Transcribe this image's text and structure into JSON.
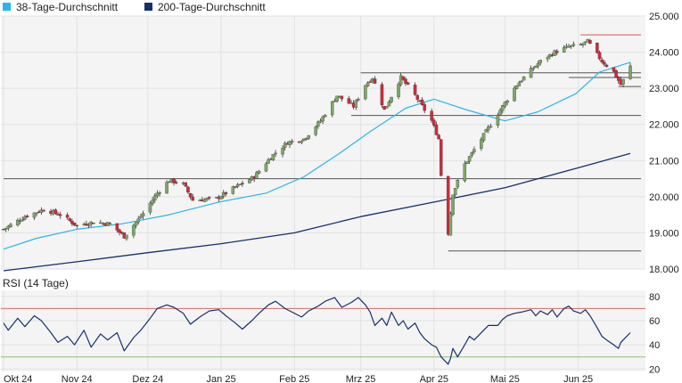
{
  "legend": [
    {
      "name": "38-Tage-Durchschnitt",
      "color": "#29b6e8"
    },
    {
      "name": "200-Tage-Durchschnitt",
      "color": "#16306e"
    }
  ],
  "rsi_label": "RSI (14 Tage)",
  "colors": {
    "up": "#7ea864",
    "down": "#d3283a",
    "wick": "#333333",
    "sma38": "#29b6e8",
    "sma200": "#16306e",
    "rsi": "#16306e",
    "level_line": "#555555",
    "resistance": "#d9534f",
    "rsi_high": "#e06666",
    "rsi_low": "#8fbf6f",
    "grid": "#e2e2e2",
    "panel_bg": "#f4f4f4"
  },
  "chart_data": [
    {
      "type": "candlestick",
      "title": "",
      "x_labels": [
        "Okt 24",
        "Nov 24",
        "Dez 24",
        "Jan 25",
        "Feb 25",
        "Mrz 25",
        "Apr 25",
        "Mai 25",
        "Jun 25"
      ],
      "x_label_dates": [
        "2024-10-01",
        "2024-11-01",
        "2024-12-01",
        "2025-01-01",
        "2025-02-01",
        "2025-03-01",
        "2025-04-01",
        "2025-05-01",
        "2025-06-01"
      ],
      "x_range": [
        "2024-10-01",
        "2025-06-23"
      ],
      "y_ticks": [
        "18.000",
        "19.000",
        "20.000",
        "21.000",
        "22.000",
        "23.000",
        "24.000",
        "25.000"
      ],
      "y_tick_values": [
        18000,
        19000,
        20000,
        21000,
        22000,
        23000,
        24000,
        25000
      ],
      "ylim": [
        18000,
        25000
      ],
      "close_anchors": [
        [
          "2024-10-01",
          19100
        ],
        [
          "2024-10-10",
          19450
        ],
        [
          "2024-10-18",
          19650
        ],
        [
          "2024-10-25",
          19500
        ],
        [
          "2024-11-01",
          19200
        ],
        [
          "2024-11-08",
          19300
        ],
        [
          "2024-11-15",
          19250
        ],
        [
          "2024-11-21",
          18900
        ],
        [
          "2024-11-28",
          19450
        ],
        [
          "2024-12-05",
          20100
        ],
        [
          "2024-12-10",
          20450
        ],
        [
          "2024-12-16",
          20350
        ],
        [
          "2024-12-20",
          19900
        ],
        [
          "2024-12-30",
          19950
        ],
        [
          "2025-01-08",
          20300
        ],
        [
          "2025-01-15",
          20550
        ],
        [
          "2025-01-22",
          21100
        ],
        [
          "2025-01-29",
          21500
        ],
        [
          "2025-02-05",
          21600
        ],
        [
          "2025-02-12",
          22100
        ],
        [
          "2025-02-19",
          22800
        ],
        [
          "2025-02-26",
          22500
        ],
        [
          "2025-03-03",
          23100
        ],
        [
          "2025-03-06",
          23300
        ],
        [
          "2025-03-11",
          22400
        ],
        [
          "2025-03-18",
          23300
        ],
        [
          "2025-03-24",
          22800
        ],
        [
          "2025-03-31",
          22100
        ],
        [
          "2025-04-03",
          21600
        ],
        [
          "2025-04-04",
          20600
        ],
        [
          "2025-04-07",
          19000
        ],
        [
          "2025-04-09",
          20100
        ],
        [
          "2025-04-14",
          20900
        ],
        [
          "2025-04-17",
          21200
        ],
        [
          "2025-04-24",
          21900
        ],
        [
          "2025-04-30",
          22500
        ],
        [
          "2025-05-06",
          23100
        ],
        [
          "2025-05-12",
          23500
        ],
        [
          "2025-05-16",
          23750
        ],
        [
          "2025-05-22",
          24000
        ],
        [
          "2025-05-28",
          24150
        ],
        [
          "2025-06-02",
          24200
        ],
        [
          "2025-06-05",
          24300
        ],
        [
          "2025-06-11",
          23750
        ],
        [
          "2025-06-16",
          23450
        ],
        [
          "2025-06-19",
          23100
        ],
        [
          "2025-06-23",
          23600
        ]
      ],
      "sma38_anchors": [
        [
          "2024-10-01",
          18550
        ],
        [
          "2024-10-15",
          18850
        ],
        [
          "2024-11-01",
          19100
        ],
        [
          "2024-11-20",
          19250
        ],
        [
          "2024-12-10",
          19500
        ],
        [
          "2024-12-31",
          19850
        ],
        [
          "2025-01-20",
          20100
        ],
        [
          "2025-02-05",
          20550
        ],
        [
          "2025-02-20",
          21200
        ],
        [
          "2025-03-05",
          21800
        ],
        [
          "2025-03-20",
          22450
        ],
        [
          "2025-04-01",
          22700
        ],
        [
          "2025-04-15",
          22400
        ],
        [
          "2025-05-01",
          22100
        ],
        [
          "2025-05-15",
          22350
        ],
        [
          "2025-05-31",
          22850
        ],
        [
          "2025-06-10",
          23450
        ],
        [
          "2025-06-23",
          23720
        ]
      ],
      "sma200_anchors": [
        [
          "2024-10-01",
          17950
        ],
        [
          "2024-11-01",
          18200
        ],
        [
          "2024-12-01",
          18450
        ],
        [
          "2025-01-01",
          18700
        ],
        [
          "2025-02-01",
          19000
        ],
        [
          "2025-03-01",
          19450
        ],
        [
          "2025-04-01",
          19850
        ],
        [
          "2025-05-01",
          20250
        ],
        [
          "2025-06-01",
          20800
        ],
        [
          "2025-06-23",
          21200
        ]
      ],
      "support_lines": [
        {
          "value": 23430,
          "from": "2025-03-01",
          "to": "2025-06-23"
        },
        {
          "value": 23300,
          "from": "2025-05-28",
          "to": "2025-06-23"
        },
        {
          "value": 22250,
          "from": "2025-02-25",
          "to": "2025-06-23"
        },
        {
          "value": 20500,
          "from": "2024-10-01",
          "to": "2025-06-23"
        },
        {
          "value": 18500,
          "from": "2025-04-07",
          "to": "2025-06-23"
        },
        {
          "value": 23050,
          "from": "2025-06-18",
          "to": "2025-06-23"
        }
      ],
      "resistance_line": {
        "value": 24480,
        "from": "2025-06-02",
        "to": "2025-06-23"
      },
      "grid": true,
      "legend_position": "top-left"
    },
    {
      "type": "line",
      "title": "RSI (14 Tage)",
      "y_ticks": [
        "20",
        "40",
        "60",
        "80"
      ],
      "y_tick_values": [
        20,
        40,
        60,
        80
      ],
      "ylim": [
        18,
        85
      ],
      "reference_lines": [
        70,
        30
      ],
      "anchors": [
        [
          "2024-10-01",
          58
        ],
        [
          "2024-10-03",
          52
        ],
        [
          "2024-10-07",
          62
        ],
        [
          "2024-10-10",
          55
        ],
        [
          "2024-10-14",
          64
        ],
        [
          "2024-10-17",
          60
        ],
        [
          "2024-10-21",
          50
        ],
        [
          "2024-10-24",
          42
        ],
        [
          "2024-10-28",
          47
        ],
        [
          "2024-10-31",
          40
        ],
        [
          "2024-11-04",
          52
        ],
        [
          "2024-11-07",
          38
        ],
        [
          "2024-11-11",
          49
        ],
        [
          "2024-11-14",
          44
        ],
        [
          "2024-11-18",
          50
        ],
        [
          "2024-11-21",
          35
        ],
        [
          "2024-11-25",
          46
        ],
        [
          "2024-11-28",
          52
        ],
        [
          "2024-12-02",
          62
        ],
        [
          "2024-12-05",
          70
        ],
        [
          "2024-12-09",
          73
        ],
        [
          "2024-12-12",
          71
        ],
        [
          "2024-12-16",
          66
        ],
        [
          "2024-12-19",
          57
        ],
        [
          "2024-12-23",
          63
        ],
        [
          "2024-12-27",
          68
        ],
        [
          "2024-12-31",
          69
        ],
        [
          "2025-01-03",
          64
        ],
        [
          "2025-01-07",
          58
        ],
        [
          "2025-01-10",
          53
        ],
        [
          "2025-01-14",
          60
        ],
        [
          "2025-01-17",
          66
        ],
        [
          "2025-01-21",
          73
        ],
        [
          "2025-01-24",
          76
        ],
        [
          "2025-01-28",
          70
        ],
        [
          "2025-01-31",
          67
        ],
        [
          "2025-02-04",
          63
        ],
        [
          "2025-02-07",
          68
        ],
        [
          "2025-02-11",
          72
        ],
        [
          "2025-02-14",
          76
        ],
        [
          "2025-02-18",
          79
        ],
        [
          "2025-02-21",
          71
        ],
        [
          "2025-02-25",
          75
        ],
        [
          "2025-02-28",
          79
        ],
        [
          "2025-03-03",
          73
        ],
        [
          "2025-03-05",
          67
        ],
        [
          "2025-03-07",
          56
        ],
        [
          "2025-03-10",
          62
        ],
        [
          "2025-03-12",
          56
        ],
        [
          "2025-03-14",
          67
        ],
        [
          "2025-03-17",
          56
        ],
        [
          "2025-03-19",
          60
        ],
        [
          "2025-03-21",
          53
        ],
        [
          "2025-03-24",
          58
        ],
        [
          "2025-03-26",
          50
        ],
        [
          "2025-03-28",
          45
        ],
        [
          "2025-03-31",
          40
        ],
        [
          "2025-04-02",
          38
        ],
        [
          "2025-04-04",
          30
        ],
        [
          "2025-04-07",
          24
        ],
        [
          "2025-04-08",
          29
        ],
        [
          "2025-04-09",
          37
        ],
        [
          "2025-04-11",
          30
        ],
        [
          "2025-04-14",
          40
        ],
        [
          "2025-04-16",
          47
        ],
        [
          "2025-04-18",
          44
        ],
        [
          "2025-04-22",
          52
        ],
        [
          "2025-04-24",
          56
        ],
        [
          "2025-04-28",
          56
        ],
        [
          "2025-04-30",
          61
        ],
        [
          "2025-05-02",
          64
        ],
        [
          "2025-05-05",
          66
        ],
        [
          "2025-05-08",
          67
        ],
        [
          "2025-05-12",
          69
        ],
        [
          "2025-05-14",
          64
        ],
        [
          "2025-05-16",
          68
        ],
        [
          "2025-05-19",
          65
        ],
        [
          "2025-05-21",
          69
        ],
        [
          "2025-05-23",
          63
        ],
        [
          "2025-05-26",
          70
        ],
        [
          "2025-05-28",
          72
        ],
        [
          "2025-05-30",
          68
        ],
        [
          "2025-06-02",
          66
        ],
        [
          "2025-06-04",
          69
        ],
        [
          "2025-06-06",
          64
        ],
        [
          "2025-06-09",
          54
        ],
        [
          "2025-06-11",
          47
        ],
        [
          "2025-06-13",
          44
        ],
        [
          "2025-06-16",
          40
        ],
        [
          "2025-06-18",
          37
        ],
        [
          "2025-06-19",
          42
        ],
        [
          "2025-06-20",
          44
        ],
        [
          "2025-06-23",
          50
        ]
      ],
      "grid": true
    }
  ]
}
